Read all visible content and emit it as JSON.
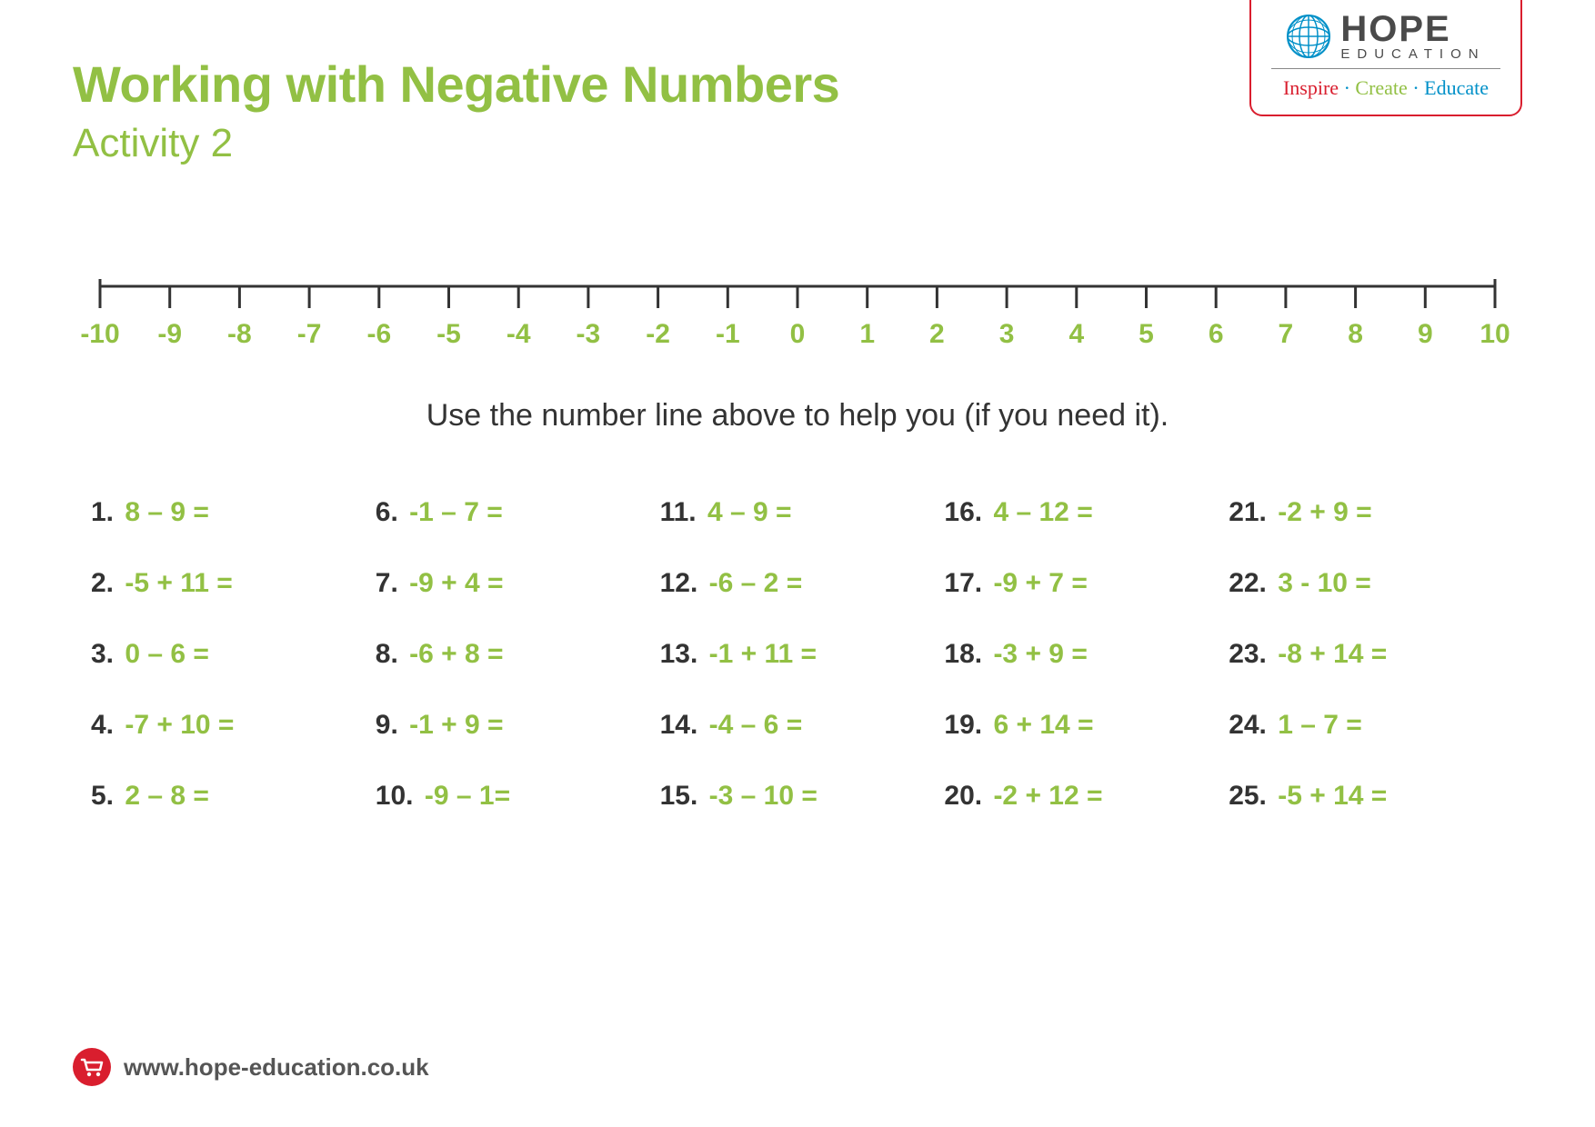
{
  "colors": {
    "accent_green": "#92c044",
    "brand_red": "#d91e2e",
    "brand_blue": "#0090c8",
    "text_dark": "#333333",
    "text_gray": "#555555",
    "background": "#ffffff"
  },
  "fonts": {
    "title_size": 56,
    "subtitle_size": 44,
    "instruction_size": 34,
    "problem_size": 30,
    "number_line_label_size": 30
  },
  "header": {
    "title": "Working with Negative Numbers",
    "subtitle": "Activity 2"
  },
  "logo": {
    "brand_top": "HOPE",
    "brand_bottom": "EDUCATION",
    "tagline_parts": [
      "Inspire",
      "Create",
      "Educate"
    ]
  },
  "number_line": {
    "min": -10,
    "max": 10,
    "ticks": [
      "-10",
      "-9",
      "-8",
      "-7",
      "-6",
      "-5",
      "-4",
      "-3",
      "-2",
      "-1",
      "0",
      "1",
      "2",
      "3",
      "4",
      "5",
      "6",
      "7",
      "8",
      "9",
      "10"
    ],
    "line_color": "#333333",
    "label_color": "#92c044"
  },
  "instruction": "Use the number line above to help you (if you need it).",
  "problems": [
    {
      "n": "1.",
      "e": "8 – 9 ="
    },
    {
      "n": "2.",
      "e": "-5 + 11 ="
    },
    {
      "n": "3.",
      "e": "0 – 6 ="
    },
    {
      "n": "4.",
      "e": "-7 + 10 ="
    },
    {
      "n": "5.",
      "e": "2 – 8 ="
    },
    {
      "n": "6.",
      "e": "-1 – 7 ="
    },
    {
      "n": "7.",
      "e": "-9 + 4 ="
    },
    {
      "n": "8.",
      "e": "-6 + 8 ="
    },
    {
      "n": "9.",
      "e": "-1 + 9 ="
    },
    {
      "n": "10.",
      "e": "-9 – 1="
    },
    {
      "n": "11.",
      "e": "4 – 9 ="
    },
    {
      "n": "12.",
      "e": "-6 – 2 ="
    },
    {
      "n": "13.",
      "e": "-1 + 11 ="
    },
    {
      "n": "14.",
      "e": "-4 – 6 ="
    },
    {
      "n": "15.",
      "e": "-3 – 10 ="
    },
    {
      "n": "16.",
      "e": "4 – 12 ="
    },
    {
      "n": "17.",
      "e": "-9 + 7 ="
    },
    {
      "n": "18.",
      "e": "-3 + 9 ="
    },
    {
      "n": "19.",
      "e": "6 + 14 ="
    },
    {
      "n": "20.",
      "e": "-2 + 12 ="
    },
    {
      "n": "21.",
      "e": "-2 + 9 ="
    },
    {
      "n": "22.",
      "e": "3 - 10 ="
    },
    {
      "n": "23.",
      "e": "-8 + 14 ="
    },
    {
      "n": "24.",
      "e": "1 – 7 ="
    },
    {
      "n": "25.",
      "e": "-5 + 14 ="
    }
  ],
  "footer": {
    "url": "www.hope-education.co.uk"
  }
}
